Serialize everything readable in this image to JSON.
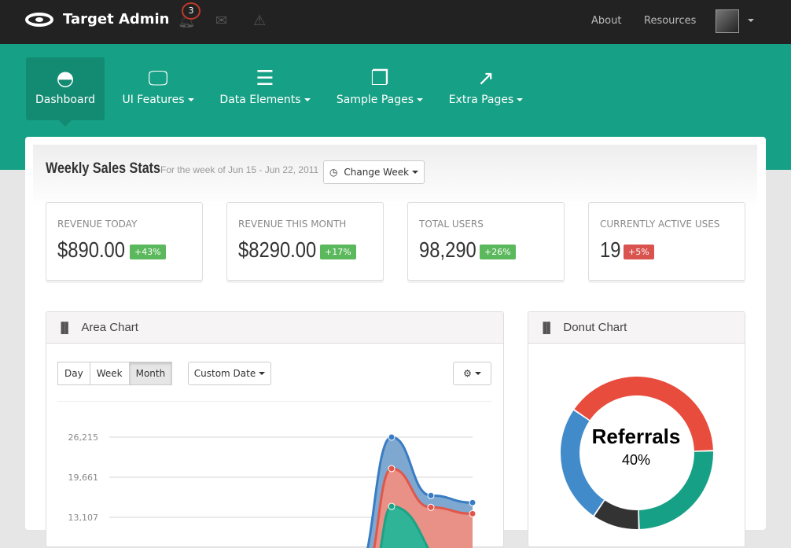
{
  "topbar": {
    "brand": "Target Admin",
    "notification_count": "3",
    "links": [
      "About",
      "Resources"
    ],
    "icons": [
      "bell-icon",
      "envelope-icon",
      "warning-icon"
    ]
  },
  "nav": [
    {
      "label": "Dashboard",
      "icon": "dashboard-icon"
    },
    {
      "label": "UI Features",
      "icon": "desktop-icon"
    },
    {
      "label": "Data Elements",
      "icon": "align-left-icon"
    },
    {
      "label": "Sample Pages",
      "icon": "copy-icon"
    },
    {
      "label": "Extra Pages",
      "icon": "external-link-icon"
    }
  ],
  "stats": {
    "title": "Weekly Sales Stats",
    "subtitle": "For the week of Jun 15 - Jun 22, 2011",
    "change_week": "Change Week",
    "cards": [
      {
        "label": "REVENUE TODAY",
        "value": "$890.00",
        "change": "+43%",
        "color": "#5cb85c"
      },
      {
        "label": "REVENUE THIS MONTH",
        "value": "$8290.00",
        "change": "+17%",
        "color": "#5cb85c"
      },
      {
        "label": "TOTAL USERS",
        "value": "98,290",
        "change": "+26%",
        "color": "#5cb85c"
      },
      {
        "label": "CURRENTLY ACTIVE USES",
        "value": "19",
        "change": "+5%",
        "color": "#d9534f"
      }
    ]
  },
  "area": {
    "title": "Area Chart",
    "ranges": [
      "Day",
      "Week",
      "Month"
    ],
    "active_range": "Month",
    "custom_date": "Custom Date"
  },
  "donut": {
    "title": "Donut Chart"
  },
  "chart_data": [
    {
      "type": "area",
      "yticks": [
        26215,
        19661,
        13107
      ],
      "ytick_labels": [
        "26,215",
        "19,661",
        "13,107"
      ],
      "series": [
        {
          "color": "#3a7cc4",
          "values": [
            null,
            26215,
            16670,
            15510
          ]
        },
        {
          "color": "#e0574a",
          "values": [
            null,
            21080,
            14740,
            13700
          ]
        },
        {
          "color": "#1aa385",
          "values": [
            null,
            14900,
            null,
            null
          ]
        }
      ],
      "grid": true
    },
    {
      "type": "pie",
      "center_label": "Referrals",
      "center_value": "40%",
      "slices": [
        {
          "label": "Referrals",
          "value": 40,
          "color": "#e74c3c"
        },
        {
          "value": 25,
          "color": "#16a085"
        },
        {
          "value": 10,
          "color": "#333333"
        },
        {
          "value": 25,
          "color": "#428bca"
        }
      ]
    }
  ]
}
